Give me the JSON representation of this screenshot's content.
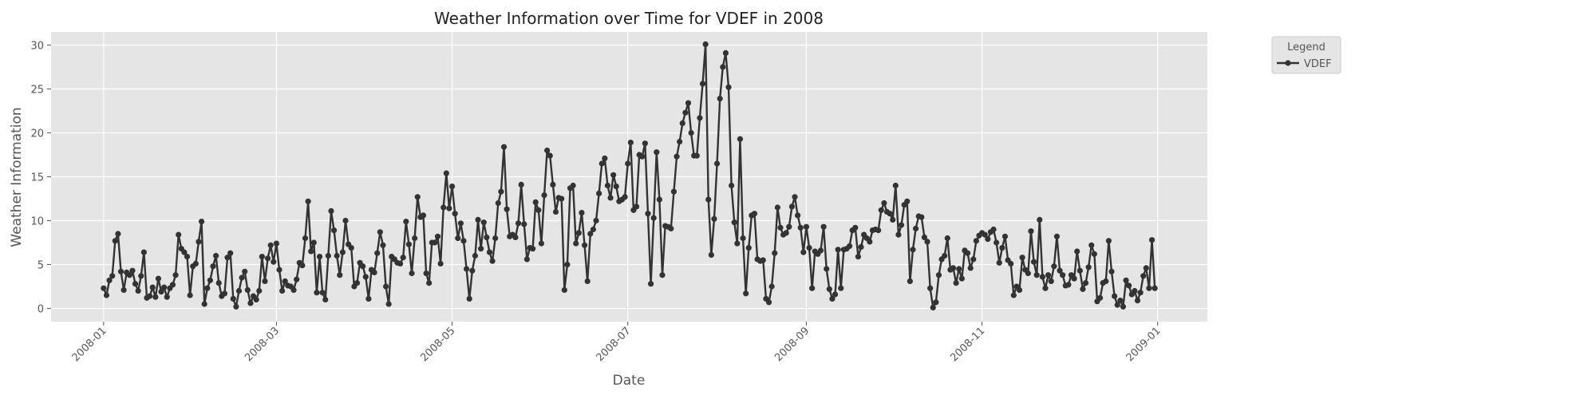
{
  "chart_data": {
    "type": "line",
    "title": "Weather Information over Time for VDEF in 2008",
    "x_label": "Date",
    "y_label": "Weather Information",
    "legend_title": "Legend",
    "legend": "outside-upper-right",
    "grid": true,
    "background": "#e5e5e5",
    "x": [
      0,
      1,
      2,
      3,
      4,
      5,
      6,
      7,
      8,
      9,
      10,
      11,
      12,
      13,
      14,
      15,
      16,
      17,
      18,
      19,
      20,
      21,
      22,
      23,
      24,
      25,
      26,
      27,
      28,
      29,
      30,
      31,
      32,
      33,
      34,
      35,
      36,
      37,
      38,
      39,
      40,
      41,
      42,
      43,
      44,
      45,
      46,
      47,
      48,
      49,
      50,
      51,
      52,
      53,
      54,
      55,
      56,
      57,
      58,
      59,
      60,
      61,
      62,
      63,
      64,
      65,
      66,
      67,
      68,
      69,
      70,
      71,
      72,
      73,
      74,
      75,
      76,
      77,
      78,
      79,
      80,
      81,
      82,
      83,
      84,
      85,
      86,
      87,
      88,
      89,
      90,
      91,
      92,
      93,
      94,
      95,
      96,
      97,
      98,
      99,
      100,
      101,
      102,
      103,
      104,
      105,
      106,
      107,
      108,
      109,
      110,
      111,
      112,
      113,
      114,
      115,
      116,
      117,
      118,
      119,
      120,
      121,
      122,
      123,
      124,
      125,
      126,
      127,
      128,
      129,
      130,
      131,
      132,
      133,
      134,
      135,
      136,
      137,
      138,
      139,
      140,
      141,
      142,
      143,
      144,
      145,
      146,
      147,
      148,
      149,
      150,
      151,
      152,
      153,
      154,
      155,
      156,
      157,
      158,
      159,
      160,
      161,
      162,
      163,
      164,
      165,
      166,
      167,
      168,
      169,
      170,
      171,
      172,
      173,
      174,
      175,
      176,
      177,
      178,
      179,
      180,
      181,
      182,
      183,
      184,
      185,
      186,
      187,
      188,
      189,
      190,
      191,
      192,
      193,
      194,
      195,
      196,
      197,
      198,
      199,
      200,
      201,
      202,
      203,
      204,
      205,
      206,
      207,
      208,
      209,
      210,
      211,
      212,
      213,
      214,
      215,
      216,
      217,
      218,
      219,
      220,
      221,
      222,
      223,
      224,
      225,
      226,
      227,
      228,
      229,
      230,
      231,
      232,
      233,
      234,
      235,
      236,
      237,
      238,
      239,
      240,
      241,
      242,
      243,
      244,
      245,
      246,
      247,
      248,
      249,
      250,
      251,
      252,
      253,
      254,
      255,
      256,
      257,
      258,
      259,
      260,
      261,
      262,
      263,
      264,
      265,
      266,
      267,
      268,
      269,
      270,
      271,
      272,
      273,
      274,
      275,
      276,
      277,
      278,
      279,
      280,
      281,
      282,
      283,
      284,
      285,
      286,
      287,
      288,
      289,
      290,
      291,
      292,
      293,
      294,
      295,
      296,
      297,
      298,
      299,
      300,
      301,
      302,
      303,
      304,
      305,
      306,
      307,
      308,
      309,
      310,
      311,
      312,
      313,
      314,
      315,
      316,
      317,
      318,
      319,
      320,
      321,
      322,
      323,
      324,
      325,
      326,
      327,
      328,
      329,
      330,
      331,
      332,
      333,
      334,
      335,
      336,
      337,
      338,
      339,
      340,
      341,
      342,
      343,
      344,
      345,
      346,
      347,
      348,
      349,
      350,
      351,
      352,
      353,
      354,
      355,
      356,
      357,
      358,
      359,
      360,
      361,
      362,
      363,
      364,
      365
    ],
    "series": [
      {
        "name": "VDEF",
        "color": "#333333",
        "values": [
          2.3,
          1.5,
          3.2,
          3.7,
          7.7,
          8.5,
          4.2,
          2.1,
          4.1,
          3.8,
          4.3,
          2.8,
          2.0,
          3.7,
          6.4,
          1.2,
          1.4,
          2.4,
          1.3,
          3.4,
          1.9,
          2.4,
          1.3,
          2.3,
          2.7,
          3.8,
          8.4,
          6.8,
          6.4,
          5.9,
          1.5,
          4.8,
          5.1,
          7.6,
          9.9,
          0.5,
          2.3,
          3.2,
          4.8,
          6.0,
          2.9,
          1.4,
          1.7,
          5.8,
          6.3,
          1.1,
          0.2,
          2.0,
          3.5,
          4.2,
          2.1,
          0.6,
          1.4,
          1.0,
          2.0,
          5.9,
          3.1,
          5.7,
          7.2,
          5.3,
          7.4,
          4.4,
          2.0,
          3.1,
          2.6,
          2.5,
          2.1,
          3.3,
          5.2,
          4.9,
          8.0,
          12.2,
          6.5,
          7.5,
          1.8,
          5.9,
          1.8,
          1.0,
          6.0,
          11.1,
          8.9,
          6.0,
          3.8,
          6.4,
          10.0,
          7.3,
          6.9,
          2.5,
          2.9,
          5.2,
          4.8,
          3.6,
          1.1,
          4.4,
          4.1,
          6.3,
          8.7,
          7.2,
          2.5,
          0.5,
          5.9,
          5.6,
          5.2,
          5.1,
          5.8,
          9.9,
          7.3,
          4.0,
          8.0,
          12.7,
          10.4,
          10.6,
          4.0,
          2.9,
          7.5,
          7.5,
          8.2,
          5.1,
          11.5,
          15.4,
          11.4,
          13.9,
          10.8,
          8.0,
          9.7,
          7.7,
          4.5,
          1.1,
          4.3,
          6.0,
          10.1,
          6.8,
          9.8,
          8.1,
          6.4,
          5.4,
          8.0,
          12.0,
          13.3,
          18.4,
          11.3,
          8.2,
          8.4,
          8.1,
          9.7,
          14.1,
          9.6,
          5.6,
          6.9,
          6.8,
          12.1,
          11.2,
          7.4,
          12.9,
          18.0,
          17.4,
          14.1,
          11.0,
          12.6,
          12.5,
          2.1,
          5.0,
          13.7,
          14.0,
          7.4,
          8.6,
          10.9,
          7.2,
          3.1,
          8.5,
          9.0,
          10.0,
          13.1,
          16.5,
          17.1,
          14.0,
          12.6,
          15.2,
          13.9,
          12.2,
          12.4,
          12.7,
          16.5,
          18.9,
          11.2,
          11.6,
          17.5,
          17.3,
          18.8,
          10.8,
          2.8,
          10.3,
          17.8,
          12.4,
          3.8,
          9.4,
          9.3,
          9.1,
          13.3,
          17.3,
          19.0,
          21.1,
          22.3,
          23.4,
          20.0,
          17.4,
          17.4,
          21.7,
          25.6,
          30.1,
          12.4,
          6.1,
          10.2,
          16.5,
          23.9,
          27.5,
          29.1,
          25.2,
          14.0,
          9.8,
          7.4,
          19.3,
          8.0,
          1.7,
          6.9,
          10.6,
          10.8,
          5.6,
          5.4,
          5.5,
          1.1,
          0.7,
          2.5,
          6.3,
          11.5,
          9.2,
          8.4,
          8.6,
          9.3,
          11.6,
          12.7,
          10.6,
          9.2,
          6.4,
          9.3,
          6.9,
          2.3,
          6.5,
          6.2,
          6.6,
          9.3,
          4.5,
          2.2,
          1.1,
          1.6,
          6.7,
          2.3,
          6.7,
          6.8,
          7.1,
          8.9,
          9.2,
          5.9,
          7.0,
          8.4,
          8.0,
          7.6,
          8.9,
          9.0,
          8.9,
          11.2,
          12.0,
          11.0,
          10.8,
          10.1,
          14.0,
          8.4,
          9.5,
          11.8,
          12.2,
          3.1,
          6.7,
          9.1,
          10.5,
          10.4,
          8.1,
          7.6,
          2.3,
          0.1,
          0.7,
          3.8,
          5.6,
          6.0,
          8.0,
          4.4,
          4.6,
          2.9,
          4.5,
          3.4,
          6.6,
          6.3,
          4.6,
          5.6,
          7.7,
          8.3,
          8.6,
          8.4,
          7.9,
          8.7,
          9.0,
          7.5,
          5.2,
          6.9,
          8.2,
          5.5,
          5.1,
          1.5,
          2.5,
          2.1,
          5.8,
          4.4,
          4.0,
          8.8,
          5.3,
          3.8,
          10.1,
          3.6,
          2.3,
          3.8,
          3.1,
          4.8,
          8.2,
          4.3,
          3.8,
          2.6,
          2.7,
          3.8,
          3.4,
          6.5,
          4.3,
          2.2,
          2.9,
          4.7,
          7.2,
          6.2,
          0.8,
          1.2,
          2.9,
          3.1,
          7.7,
          4.2,
          1.4,
          0.4,
          0.9,
          0.2,
          3.2,
          2.6,
          1.6,
          2.0,
          0.9,
          1.8,
          3.7,
          4.6,
          2.3,
          7.8,
          2.3
        ]
      }
    ],
    "xlim": [
      -18.25,
      383.25
    ],
    "xticks": [
      {
        "value": 0,
        "label": "2008-01"
      },
      {
        "value": 60,
        "label": "2008-03"
      },
      {
        "value": 121,
        "label": "2008-05"
      },
      {
        "value": 182,
        "label": "2008-07"
      },
      {
        "value": 244,
        "label": "2008-09"
      },
      {
        "value": 305,
        "label": "2008-11"
      },
      {
        "value": 366,
        "label": "2009-01"
      }
    ],
    "ylim": [
      -1.5,
      31.5
    ],
    "yticks": [
      0,
      5,
      10,
      15,
      20,
      25,
      30
    ]
  }
}
